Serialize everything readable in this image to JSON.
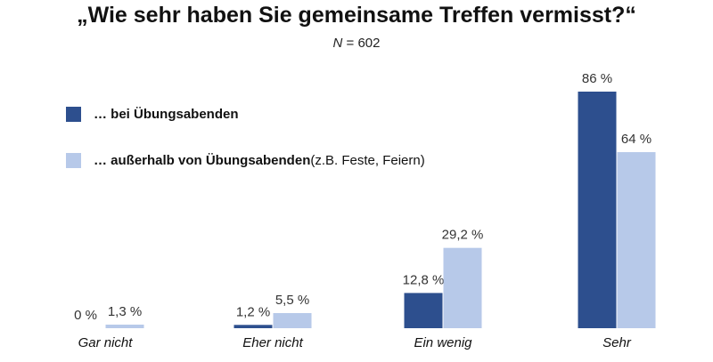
{
  "title": "„Wie sehr haben Sie gemeinsame Treffen vermisst?“",
  "subtitle": {
    "n_symbol": "N",
    "n_text": " = 602"
  },
  "legend": [
    {
      "bold": "… bei Übungsabenden",
      "normal": ""
    },
    {
      "bold": "… außerhalb von Übungsabenden",
      "normal": " (z.B. Feste, Feiern)"
    }
  ],
  "colors": {
    "series_1": "#2d4f8e",
    "series_2": "#b7c9e9"
  },
  "chart_data": {
    "type": "bar",
    "title": "„Wie sehr haben Sie gemeinsame Treffen vermisst?“",
    "subtitle": "N = 602",
    "categories": [
      "Gar nicht",
      "Eher nicht",
      "Ein wenig",
      "Sehr"
    ],
    "series": [
      {
        "name": "… bei Übungsabenden",
        "values": [
          0,
          1.2,
          12.8,
          86
        ],
        "labels": [
          "0 %",
          "1,2 %",
          "12,8 %",
          "86 %"
        ]
      },
      {
        "name": "… außerhalb von Übungsabenden (z.B. Feste, Feiern)",
        "values": [
          1.3,
          5.5,
          29.2,
          64
        ],
        "labels": [
          "1,3 %",
          "5,5 %",
          "29,2 %",
          "64 %"
        ]
      }
    ],
    "ylim": [
      0,
      86
    ],
    "xlabel": "",
    "ylabel": "",
    "grid": false,
    "legend_position": "top-left"
  }
}
